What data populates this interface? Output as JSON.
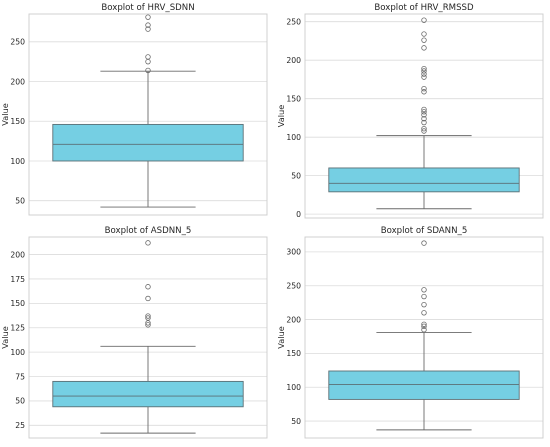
{
  "chart_data": [
    {
      "type": "box",
      "title": "Boxplot of HRV_SDNN",
      "ylabel": "Value",
      "ylim": [
        32,
        285
      ],
      "yticks": [
        50,
        100,
        150,
        200,
        250
      ],
      "whisker_low": 42,
      "q1": 100,
      "median": 121,
      "q3": 146,
      "whisker_high": 213,
      "outliers": [
        214,
        225,
        231,
        266,
        271,
        281
      ],
      "color": "#75cfe3"
    },
    {
      "type": "box",
      "title": "Boxplot of HRV_RMSSD",
      "ylabel": "Value",
      "ylim": [
        -5,
        260
      ],
      "yticks": [
        0,
        50,
        100,
        150,
        200,
        250
      ],
      "whisker_low": 7,
      "q1": 29,
      "median": 40,
      "q3": 60,
      "whisker_high": 102,
      "outliers": [
        108,
        111,
        119,
        124,
        129,
        133,
        136,
        159,
        163,
        178,
        182,
        186,
        189,
        216,
        226,
        234,
        252
      ],
      "color": "#75cfe3"
    },
    {
      "type": "box",
      "title": "Boxplot of ASDNN_5",
      "ylabel": "Value",
      "ylim": [
        12,
        218
      ],
      "yticks": [
        25,
        50,
        75,
        100,
        125,
        150,
        175,
        200
      ],
      "whisker_low": 17,
      "q1": 44,
      "median": 55,
      "q3": 70,
      "whisker_high": 106,
      "outliers": [
        128,
        130,
        135,
        137,
        155,
        167,
        212
      ],
      "color": "#75cfe3"
    },
    {
      "type": "box",
      "title": "Boxplot of SDANN_5",
      "ylabel": "Value",
      "ylim": [
        25,
        322
      ],
      "yticks": [
        50,
        100,
        150,
        200,
        250,
        300
      ],
      "whisker_low": 37,
      "q1": 82,
      "median": 104,
      "q3": 124,
      "whisker_high": 181,
      "outliers": [
        185,
        190,
        193,
        210,
        222,
        234,
        244,
        313
      ],
      "color": "#75cfe3"
    }
  ]
}
